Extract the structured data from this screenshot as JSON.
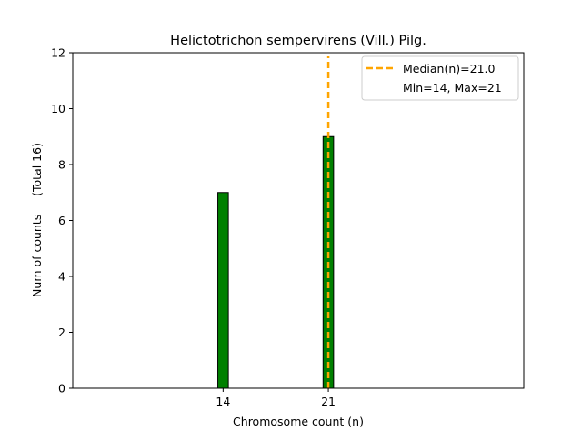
{
  "chart_data": {
    "type": "bar",
    "title": "Helictotrichon sempervirens (Vill.) Pilg.",
    "xlabel": "Chromosome count (n)",
    "ylabel": "Num of counts     (Total 16)",
    "xlim": [
      4,
      34
    ],
    "ylim": [
      0,
      12
    ],
    "x_ticks": [
      14,
      21
    ],
    "y_ticks": [
      0,
      2,
      4,
      6,
      8,
      10,
      12
    ],
    "bars": [
      {
        "x": 14,
        "value": 7
      },
      {
        "x": 21,
        "value": 9
      }
    ],
    "bar_width": 0.7,
    "bar_color": "#008000",
    "median": {
      "value": 21.0,
      "label": "Median(n)=21.0",
      "color": "#ffa500"
    },
    "range_label": "Min=14, Max=21",
    "legend_position": "top-right",
    "grid": false
  }
}
